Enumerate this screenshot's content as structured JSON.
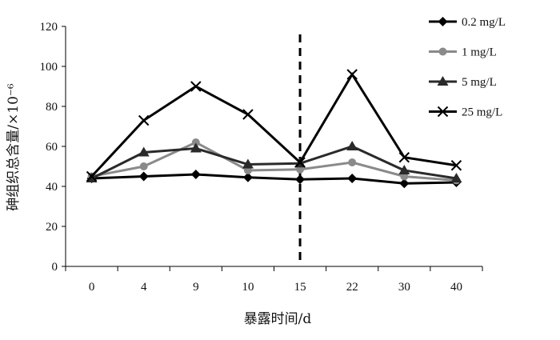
{
  "chart_data": {
    "type": "line",
    "title": "",
    "xlabel": "暴露时间/d",
    "ylabel": "砷组织总含量/×10⁻⁶",
    "categories": [
      "0",
      "4",
      "9",
      "10",
      "15",
      "22",
      "30",
      "40"
    ],
    "ylim": [
      0,
      120
    ],
    "yticks": [
      "0",
      "20",
      "40",
      "60",
      "80",
      "100",
      "120"
    ],
    "grid": false,
    "legend_position": "right",
    "dashed_marker_at": "15",
    "series": [
      {
        "name": "0.2 mg/L",
        "values": [
          44,
          45,
          46,
          44.5,
          43.5,
          44,
          41.5,
          42
        ],
        "color": "#000000",
        "marker": "diamond"
      },
      {
        "name": "1 mg/L",
        "values": [
          45,
          50,
          62,
          48,
          48.5,
          52,
          45,
          43
        ],
        "color": "#8a8a8a",
        "marker": "circle"
      },
      {
        "name": "5 mg/L",
        "values": [
          44,
          57,
          59,
          51,
          51.5,
          60,
          48,
          44
        ],
        "color": "#2a2a2a",
        "marker": "triangle"
      },
      {
        "name": "25 mg/L",
        "values": [
          45,
          73,
          90,
          76,
          52,
          96,
          54.5,
          50.5
        ],
        "color": "#000000",
        "marker": "x"
      }
    ]
  }
}
